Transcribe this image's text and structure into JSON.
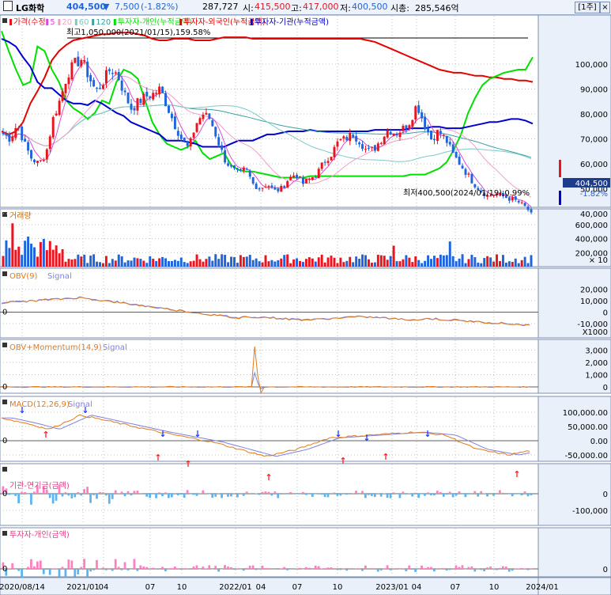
{
  "header": {
    "stock_name": "LG화학",
    "price": "404,500",
    "change_symbol": "▼",
    "change": "7,500",
    "change_pct": "(-1.82%)",
    "volume": "287,727",
    "open_label": "시:",
    "open": "415,500",
    "high_label": "고:",
    "high": "417,000",
    "low_label": "저:",
    "low": "400,500",
    "mcap_label": "시총:",
    "mcap": "285,546억",
    "period_button": "[1주]",
    "close_button": "×"
  },
  "colors": {
    "up": "#e8141e",
    "down": "#1e64dc",
    "foreign": "#e60000",
    "individual": "#00e000",
    "institution": "#0000d0",
    "ma5": "#d84ad8",
    "ma20": "#f0a0c8",
    "ma60": "#7fc8c8",
    "ma120": "#3aa0a0",
    "obv": "#e07a1c",
    "signal": "#8080e0",
    "bar_pos": "#ff7fbf",
    "bar_neg": "#5ab4f0",
    "grid": "#c0c0c0",
    "panel_bg": "#ffffff",
    "axis_bg": "#eaf0fa"
  },
  "panels": {
    "price": {
      "legend": [
        "가격(수정)",
        "5",
        "20",
        "60",
        "120",
        "투자자-개인(누적금액)",
        "투자자-외국인(누적금액)",
        "투자자-기관(누적금액)"
      ],
      "high_annotation": "최고1,050,000(2021/01/15),159.58%",
      "low_annotation": "최저400,500(2024/01/19),0.99%",
      "price_tag": "404,500",
      "pct_tag": "-1.82%",
      "ticks": [
        "100,000",
        "90,000",
        "80,000",
        "70,000",
        "60,000",
        "50,000",
        "40,000"
      ]
    },
    "volume": {
      "legend": [
        "거래량"
      ],
      "ticks": [
        "600,000",
        "400,000",
        "200,000"
      ],
      "unit": "× 10"
    },
    "obv": {
      "legend": [
        "OBV(9)",
        "Signal"
      ],
      "ticks": [
        "20,000",
        "10,000",
        "0",
        "-10,000"
      ],
      "unit": "X1000",
      "zero_label": "0"
    },
    "obv_momentum": {
      "legend": [
        "OBV+Momentum(14,9)",
        "Signal"
      ],
      "ticks": [
        "3,000",
        "2,000",
        "1,000",
        "0"
      ],
      "zero_label": "0"
    },
    "macd": {
      "legend": [
        "MACD(12,26,9)",
        "Signal"
      ],
      "ticks": [
        "100,000.00",
        "50,000.00",
        "0.00",
        "-50,000.00"
      ],
      "zero_label": "0"
    },
    "institution_pension": {
      "legend": [
        "기관-연기금(금액)"
      ],
      "ticks": [
        "0",
        "-100,000"
      ],
      "zero_label": "0"
    },
    "individual": {
      "legend": [
        "투자자-개인(금액)"
      ],
      "ticks": [
        "0"
      ],
      "zero_label": "0"
    }
  },
  "x_axis": {
    "labels": [
      "2020/08/14",
      "2021/01",
      "04",
      "07",
      "10",
      "2022/01",
      "04",
      "07",
      "10",
      "2023/01",
      "04",
      "07",
      "10",
      "2024/01"
    ]
  },
  "chart_data": {
    "type": "line",
    "title": "LG화학",
    "price_axis_ticks": [
      100000,
      90000,
      80000,
      70000,
      60000,
      50000,
      40000
    ],
    "x_labels": [
      "2020/08/14",
      "2021/01",
      "04",
      "07",
      "10",
      "2022/01",
      "04",
      "07",
      "10",
      "2023/01",
      "04",
      "07",
      "10",
      "2024/01"
    ],
    "series": [
      {
        "name": "가격(수정)",
        "type": "candlestick",
        "values": [
          720000,
          700000,
          760000,
          680000,
          620000,
          600000,
          640000,
          780000,
          860000,
          960000,
          1000000,
          1020000,
          950000,
          890000,
          930000,
          980000,
          960000,
          880000,
          820000,
          850000,
          870000,
          880000,
          900000,
          830000,
          760000,
          700000,
          660000,
          760000,
          800000,
          780000,
          700000,
          620000,
          580000,
          560000,
          580000,
          520000,
          500000,
          520000,
          490000,
          500000,
          540000,
          560000,
          520000,
          540000,
          560000,
          610000,
          640000,
          690000,
          700000,
          720000,
          690000,
          650000,
          660000,
          700000,
          740000,
          720000,
          740000,
          770000,
          840000,
          760000,
          700000,
          730000,
          700000,
          640000,
          600000,
          560000,
          520000,
          490000,
          470000,
          480000,
          470000,
          460000,
          450000,
          430000,
          404500
        ]
      },
      {
        "name": "투자자-외국인(누적금액)",
        "values": [
          40,
          38,
          40,
          46,
          58,
          66,
          75,
          86,
          92,
          96,
          99,
          100,
          101,
          102,
          103,
          103,
          104,
          104,
          104,
          103,
          102,
          100,
          99,
          99,
          100,
          100,
          100,
          99,
          99,
          99,
          100,
          101,
          101,
          101,
          101,
          100,
          100,
          100,
          100,
          100,
          100,
          100,
          100,
          100,
          100,
          100,
          100,
          100,
          100,
          100,
          100,
          99,
          98,
          96,
          94,
          92,
          90,
          88,
          86,
          84,
          82,
          80,
          79,
          78,
          78,
          77,
          76,
          76,
          75,
          75,
          74,
          74,
          73,
          73,
          72
        ]
      },
      {
        "name": "투자자-개인(누적금액)",
        "values": [
          105,
          92,
          80,
          70,
          72,
          95,
          92,
          80,
          72,
          60,
          55,
          52,
          48,
          52,
          60,
          58,
          72,
          80,
          78,
          74,
          60,
          46,
          38,
          32,
          30,
          28,
          30,
          34,
          26,
          22,
          24,
          26,
          18,
          15,
          14,
          14,
          13,
          12,
          11,
          10,
          10,
          10,
          10,
          11,
          11,
          11,
          11,
          11,
          11,
          11,
          11,
          11,
          11,
          11,
          11,
          11,
          11,
          12,
          12,
          12,
          14,
          16,
          20,
          28,
          38,
          52,
          62,
          70,
          74,
          76,
          78,
          79,
          80,
          80,
          88
        ]
      },
      {
        "name": "투자자-기관(누적금액)",
        "values": [
          100,
          98,
          95,
          88,
          82,
          72,
          68,
          68,
          64,
          60,
          58,
          58,
          57,
          60,
          58,
          55,
          52,
          50,
          46,
          44,
          42,
          40,
          38,
          34,
          34,
          34,
          33,
          32,
          30,
          30,
          30,
          30,
          32,
          34,
          34,
          34,
          36,
          38,
          38,
          39,
          40,
          40,
          40,
          41,
          40,
          40,
          40,
          40,
          40,
          40,
          40,
          40,
          41,
          41,
          41,
          41,
          41,
          42,
          42,
          42,
          43,
          43,
          42,
          42,
          42,
          43,
          44,
          45,
          46,
          46,
          47,
          48,
          48,
          47,
          45
        ]
      }
    ]
  }
}
